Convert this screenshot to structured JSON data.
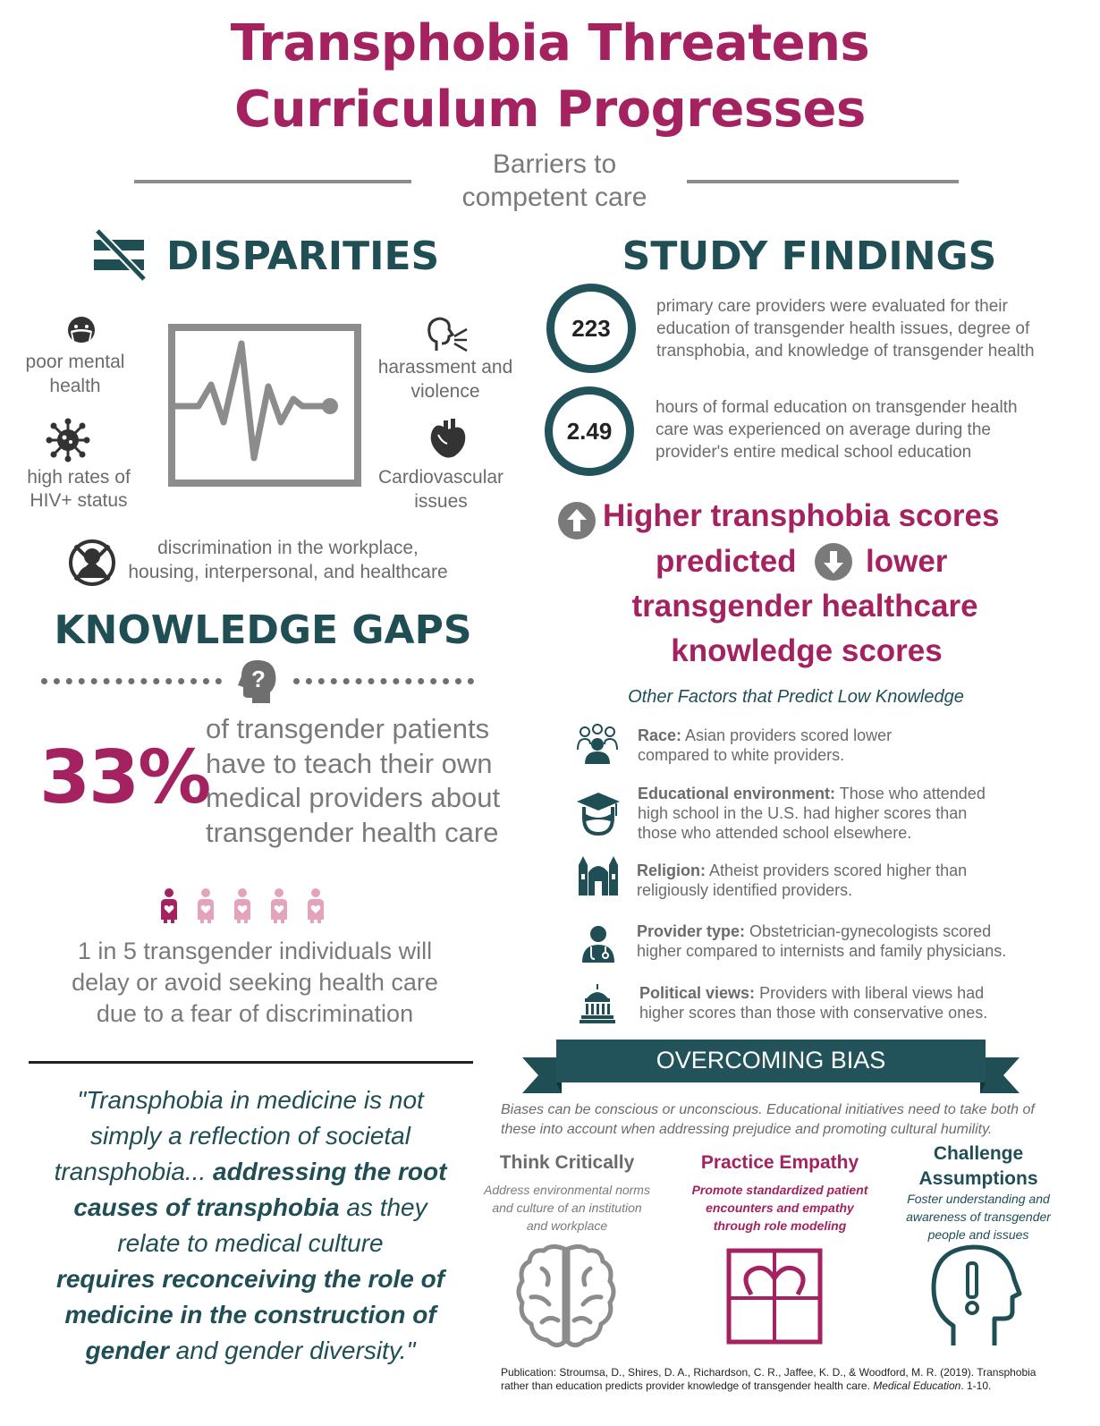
{
  "header": {
    "title_line1": "Transphobia Threatens",
    "title_line2": "Curriculum Progresses",
    "subtitle_line1": "Barriers to",
    "subtitle_line2": "competent care"
  },
  "disparities": {
    "heading": "DISPARITIES",
    "items": [
      {
        "icon": "mask-face-icon",
        "label_line1": "poor mental",
        "label_line2": "health"
      },
      {
        "icon": "virus-icon",
        "label_line1": "high rates of",
        "label_line2": "HIV+ status"
      },
      {
        "icon": "shouting-face-icon",
        "label_line1": "harassment and",
        "label_line2": "violence"
      },
      {
        "icon": "heart-organ-icon",
        "label_line1": "Cardiovascular",
        "label_line2": "issues"
      }
    ],
    "discrimination_line1": "discrimination in the workplace,",
    "discrimination_line2": "housing, interpersonal, and healthcare"
  },
  "knowledge_gaps": {
    "heading": "KNOWLEDGE GAPS",
    "stat": "33%",
    "stat_line1": "of transgender patients",
    "stat_line2": "have to teach their own",
    "stat_line3": "medical providers about",
    "stat_line4": "transgender health care",
    "ratio_line1": "1 in 5 transgender individuals will",
    "ratio_line2": "delay or avoid seeking health care",
    "ratio_line3": "due to a fear of discrimination",
    "ratio_highlighted": 1,
    "ratio_total": 5
  },
  "quote": {
    "l1": "\"Transphobia in medicine is not",
    "l2": "simply a reflection of societal",
    "l3a": "transphobia... ",
    "l3b": "addressing the root",
    "l4a": "causes of transphobia",
    "l4b": " as they",
    "l5": "relate to medical culture",
    "l6": "requires reconceiving the role of",
    "l7": "medicine in the construction of",
    "l8a": "gender",
    "l8b": " and gender diversity.\""
  },
  "study_findings": {
    "heading": "STUDY FINDINGS",
    "stat1": {
      "value": "223",
      "l1": "primary care providers were evaluated for their",
      "l2": "education of transgender health issues, degree of",
      "l3": "transphobia, and knowledge of transgender health"
    },
    "stat2": {
      "value": "2.49",
      "l1": "hours of formal education on transgender health",
      "l2": "care was experienced on average during the",
      "l3": "provider's entire medical school education"
    },
    "finding_l1": "Higher transphobia scores",
    "finding_l2a": "predicted",
    "finding_l2b": "lower",
    "finding_l3": "transgender healthcare",
    "finding_l4": "knowledge scores",
    "factors_heading": "Other Factors that Predict Low Knowledge",
    "factors": [
      {
        "icon": "group-people-icon",
        "title": "Race:",
        "l1": " Asian providers scored lower",
        "l2": "compared to white providers.",
        "l3": ""
      },
      {
        "icon": "graduate-icon",
        "title": "Educational environment:",
        "l1": " Those who attended",
        "l2": "high school in the U.S. had higher scores than",
        "l3": "those who attended school elsewhere."
      },
      {
        "icon": "religious-building-icon",
        "title": "Religion:",
        "l1": " Atheist providers scored higher than",
        "l2": "religiously identified providers.",
        "l3": ""
      },
      {
        "icon": "doctor-icon",
        "title": "Provider type:",
        "l1": " Obstetrician-gynecologists scored",
        "l2": "higher compared to internists and family physicians.",
        "l3": ""
      },
      {
        "icon": "capitol-icon",
        "title": "Political views:",
        "l1": " Providers with liberal views had",
        "l2": "higher scores than those with conservative ones.",
        "l3": ""
      }
    ]
  },
  "overcoming_bias": {
    "banner": "OVERCOMING BIAS",
    "intro_l1": "Biases can be conscious or unconscious. Educational initiatives need to take both of",
    "intro_l2": "these into account when addressing prejudice and promoting cultural humility.",
    "columns": [
      {
        "icon": "brain-icon",
        "title_l1": "Think Critically",
        "title_l2": "",
        "d1": "Address environmental norms",
        "d2": "and culture of an institution",
        "d3": "and workplace",
        "color": "#6b6b6b"
      },
      {
        "icon": "heart-in-frame-icon",
        "title_l1": "Practice Empathy",
        "title_l2": "",
        "d1": "Promote standardized patient",
        "d2": "encounters and empathy",
        "d3": "through role modeling",
        "color": "#a3225f"
      },
      {
        "icon": "head-exclamation-icon",
        "title_l1": "Challenge",
        "title_l2": "Assumptions",
        "d1": "Foster understanding and",
        "d2": "awareness of transgender",
        "d3": "people and issues",
        "color": "#1f4e55"
      }
    ]
  },
  "publication": {
    "l1": "Publication: Stroumsa, D., Shires, D. A., Richardson, C. R., Jaffee, K. D., & Woodford, M. R. (2019). Transphobia",
    "l2a": "rather than education predicts provider knowledge of transgender health care. ",
    "l2b": "Medical Education",
    "l2c": ". 1-10."
  },
  "colors": {
    "magenta": "#a3225f",
    "teal": "#1f4e55",
    "gray": "#6b6b6b",
    "pink": "#e3a3bd"
  }
}
